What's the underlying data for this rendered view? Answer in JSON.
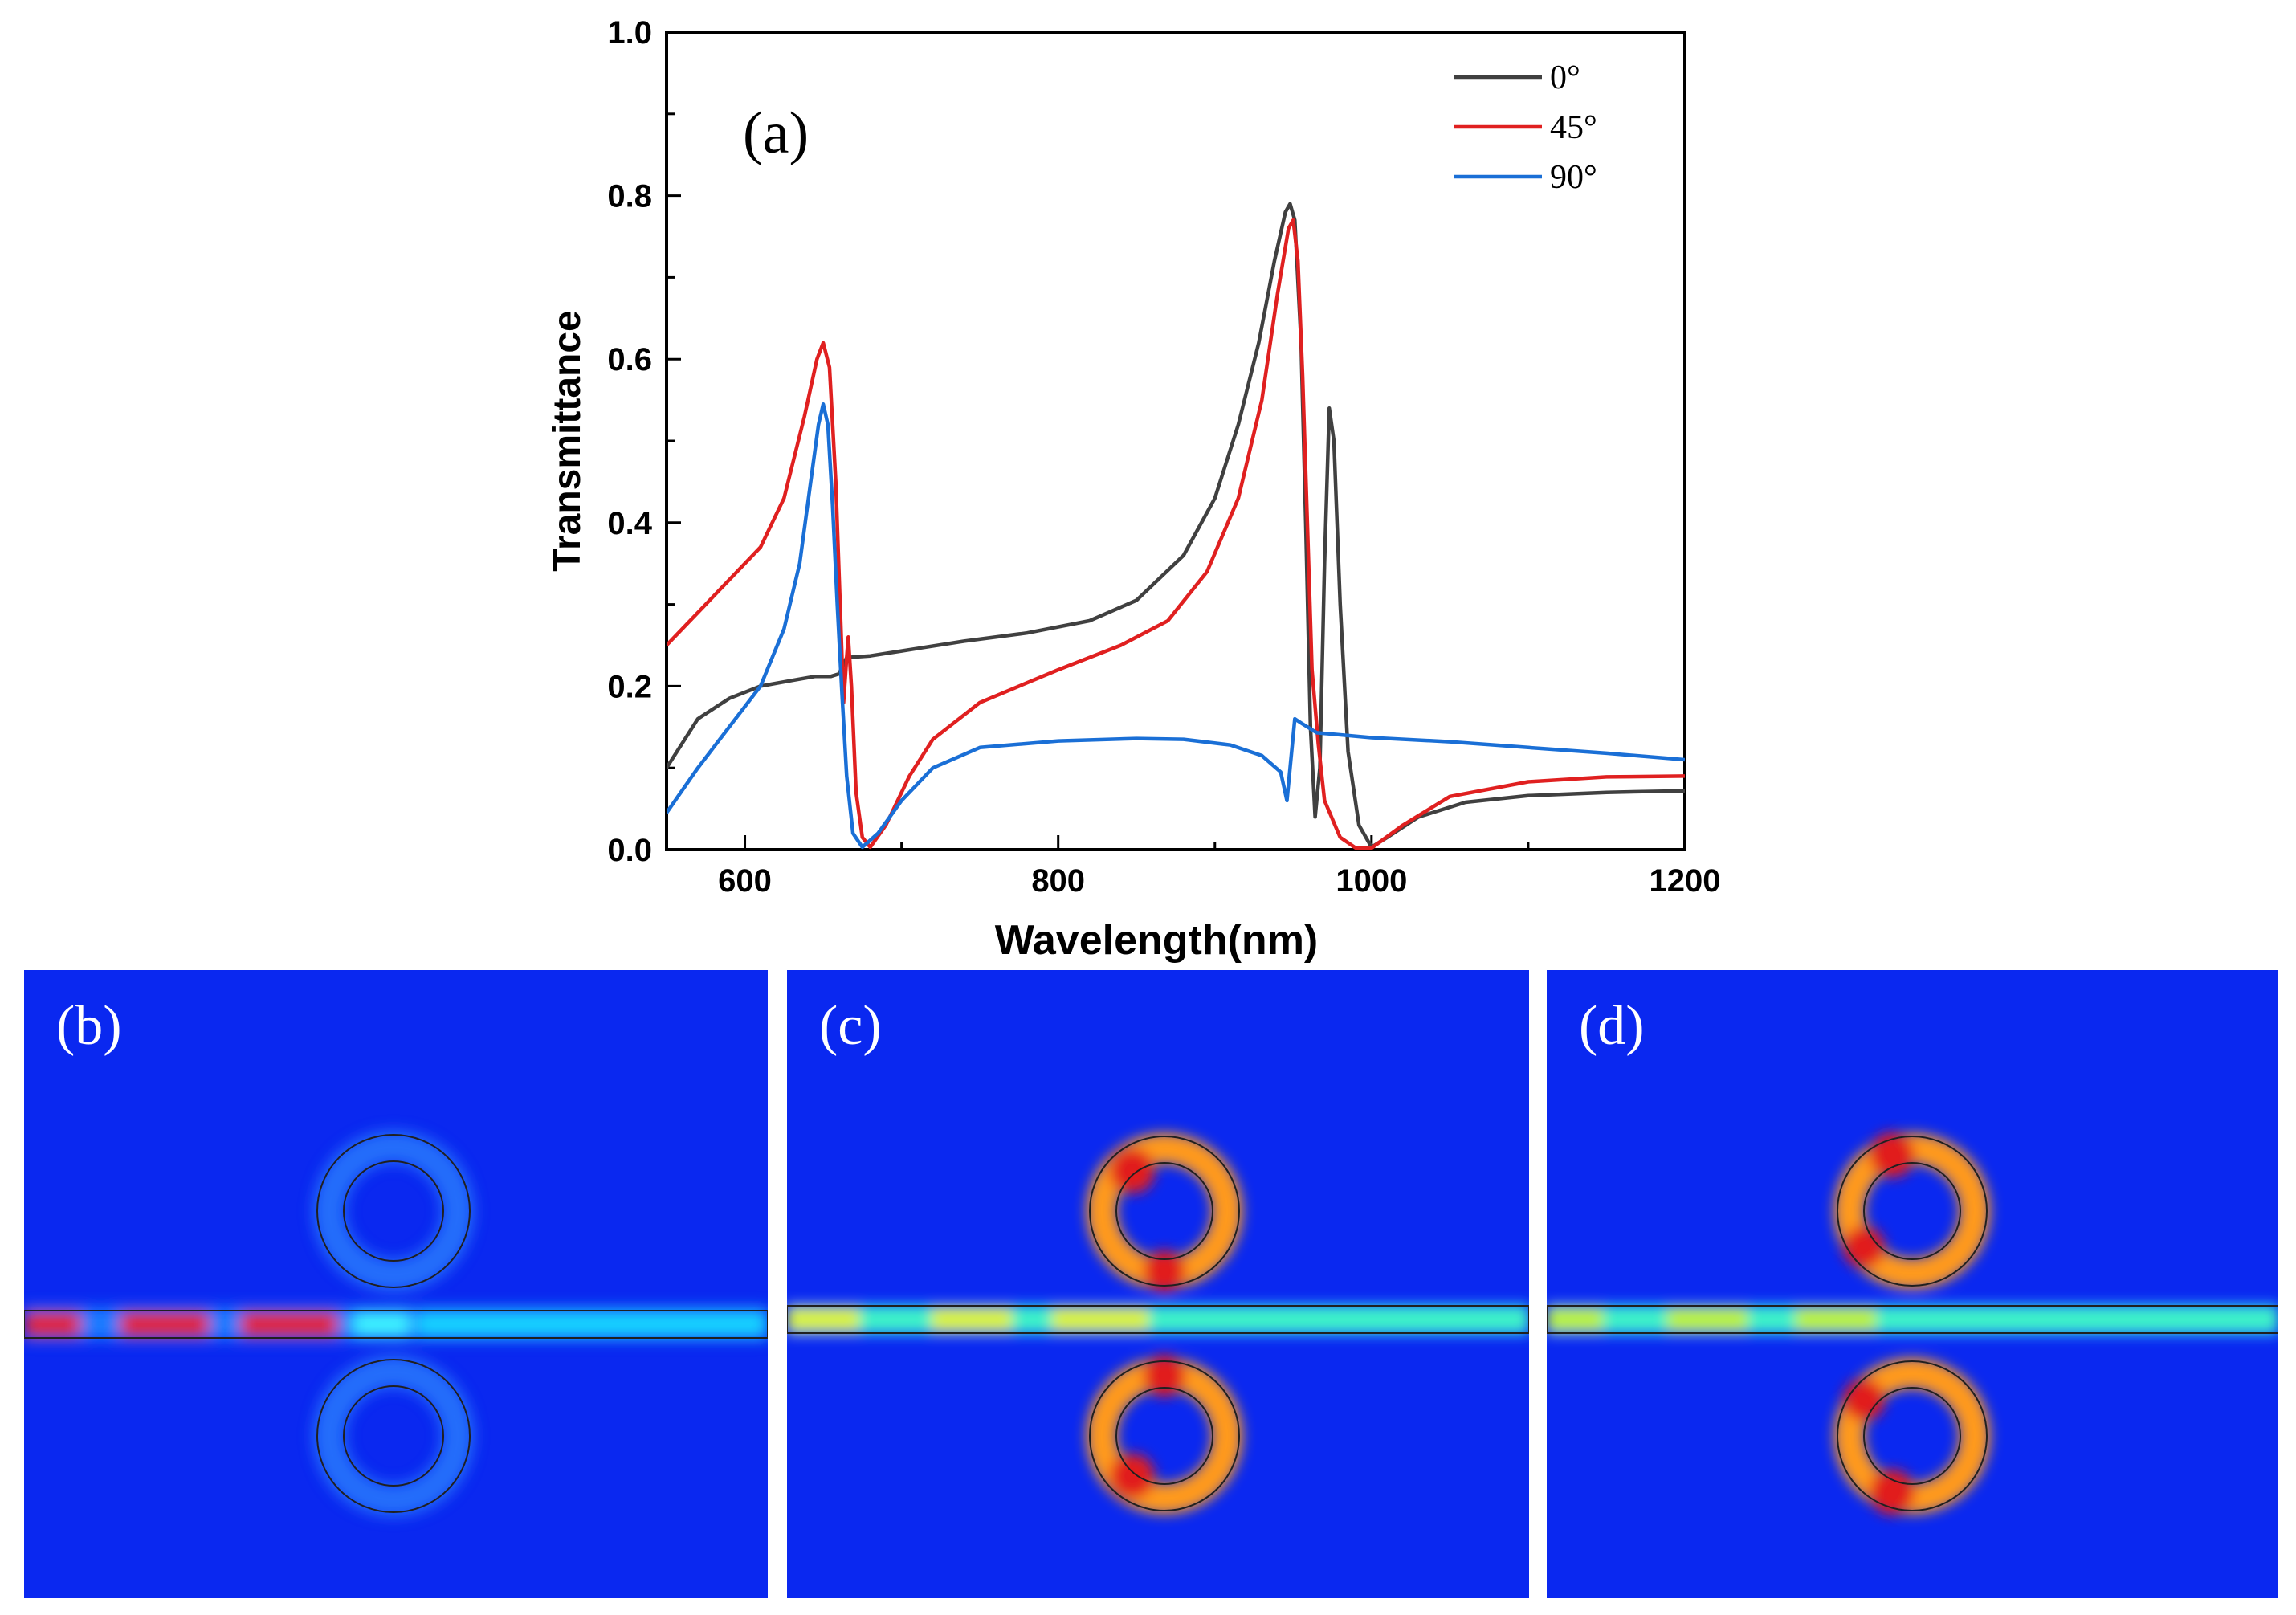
{
  "chart_data": {
    "type": "line",
    "panel_label": "(a)",
    "xlabel": "Wavelength(nm)",
    "ylabel": "Transmittance",
    "xlim": [
      550,
      1200
    ],
    "ylim": [
      0.0,
      1.0
    ],
    "xticks": [
      600,
      800,
      1000,
      1200
    ],
    "xtick_labels": [
      "600",
      "800",
      "1000",
      "1200"
    ],
    "yticks": [
      0.0,
      0.2,
      0.4,
      0.6,
      0.8,
      1.0
    ],
    "ytick_labels": [
      "0.0",
      "0.2",
      "0.4",
      "0.6",
      "0.8",
      "1.0"
    ],
    "legend_position": "top-right",
    "series": [
      {
        "name": "0°",
        "color": "#404040",
        "points": [
          [
            550,
            0.1
          ],
          [
            570,
            0.16
          ],
          [
            590,
            0.185
          ],
          [
            610,
            0.2
          ],
          [
            630,
            0.207
          ],
          [
            645,
            0.212
          ],
          [
            655,
            0.212
          ],
          [
            660,
            0.215
          ],
          [
            665,
            0.235
          ],
          [
            680,
            0.237
          ],
          [
            700,
            0.243
          ],
          [
            740,
            0.255
          ],
          [
            780,
            0.265
          ],
          [
            820,
            0.28
          ],
          [
            850,
            0.305
          ],
          [
            880,
            0.36
          ],
          [
            900,
            0.43
          ],
          [
            915,
            0.52
          ],
          [
            928,
            0.62
          ],
          [
            938,
            0.72
          ],
          [
            945,
            0.78
          ],
          [
            948,
            0.79
          ],
          [
            951,
            0.77
          ],
          [
            955,
            0.62
          ],
          [
            958,
            0.4
          ],
          [
            961,
            0.15
          ],
          [
            964,
            0.04
          ],
          [
            967,
            0.1
          ],
          [
            970,
            0.35
          ],
          [
            973,
            0.54
          ],
          [
            976,
            0.5
          ],
          [
            980,
            0.3
          ],
          [
            985,
            0.12
          ],
          [
            992,
            0.03
          ],
          [
            1000,
            0.003
          ],
          [
            1010,
            0.015
          ],
          [
            1030,
            0.04
          ],
          [
            1060,
            0.058
          ],
          [
            1100,
            0.066
          ],
          [
            1150,
            0.07
          ],
          [
            1200,
            0.072
          ]
        ]
      },
      {
        "name": "45°",
        "color": "#e02020",
        "points": [
          [
            550,
            0.25
          ],
          [
            570,
            0.29
          ],
          [
            590,
            0.33
          ],
          [
            610,
            0.37
          ],
          [
            625,
            0.43
          ],
          [
            638,
            0.53
          ],
          [
            646,
            0.6
          ],
          [
            650,
            0.62
          ],
          [
            654,
            0.59
          ],
          [
            658,
            0.45
          ],
          [
            661,
            0.29
          ],
          [
            663,
            0.18
          ],
          [
            665,
            0.235
          ],
          [
            666,
            0.26
          ],
          [
            668,
            0.2
          ],
          [
            671,
            0.07
          ],
          [
            675,
            0.015
          ],
          [
            680,
            0.003
          ],
          [
            690,
            0.03
          ],
          [
            705,
            0.09
          ],
          [
            720,
            0.135
          ],
          [
            750,
            0.18
          ],
          [
            800,
            0.22
          ],
          [
            840,
            0.25
          ],
          [
            870,
            0.28
          ],
          [
            895,
            0.34
          ],
          [
            915,
            0.43
          ],
          [
            930,
            0.55
          ],
          [
            940,
            0.68
          ],
          [
            947,
            0.76
          ],
          [
            950,
            0.77
          ],
          [
            953,
            0.72
          ],
          [
            956,
            0.58
          ],
          [
            959,
            0.4
          ],
          [
            962,
            0.22
          ],
          [
            966,
            0.13
          ],
          [
            970,
            0.06
          ],
          [
            980,
            0.015
          ],
          [
            990,
            0.002
          ],
          [
            1000,
            0.002
          ],
          [
            1020,
            0.03
          ],
          [
            1050,
            0.065
          ],
          [
            1100,
            0.083
          ],
          [
            1150,
            0.089
          ],
          [
            1200,
            0.09
          ]
        ]
      },
      {
        "name": "90°",
        "color": "#1a6fd6",
        "points": [
          [
            550,
            0.045
          ],
          [
            570,
            0.1
          ],
          [
            590,
            0.15
          ],
          [
            610,
            0.2
          ],
          [
            625,
            0.27
          ],
          [
            635,
            0.35
          ],
          [
            642,
            0.45
          ],
          [
            647,
            0.52
          ],
          [
            650,
            0.545
          ],
          [
            653,
            0.52
          ],
          [
            656,
            0.42
          ],
          [
            659,
            0.3
          ],
          [
            662,
            0.19
          ],
          [
            665,
            0.09
          ],
          [
            669,
            0.02
          ],
          [
            675,
            0.003
          ],
          [
            685,
            0.02
          ],
          [
            700,
            0.06
          ],
          [
            720,
            0.1
          ],
          [
            750,
            0.125
          ],
          [
            800,
            0.133
          ],
          [
            850,
            0.136
          ],
          [
            880,
            0.135
          ],
          [
            910,
            0.128
          ],
          [
            930,
            0.115
          ],
          [
            942,
            0.095
          ],
          [
            946,
            0.06
          ],
          [
            948,
            0.1
          ],
          [
            951,
            0.16
          ],
          [
            955,
            0.155
          ],
          [
            965,
            0.143
          ],
          [
            1000,
            0.137
          ],
          [
            1050,
            0.132
          ],
          [
            1100,
            0.125
          ],
          [
            1150,
            0.118
          ],
          [
            1200,
            0.11
          ]
        ]
      }
    ]
  },
  "field_maps": [
    {
      "label": "(b)"
    },
    {
      "label": "(c)"
    },
    {
      "label": "(d)"
    }
  ]
}
